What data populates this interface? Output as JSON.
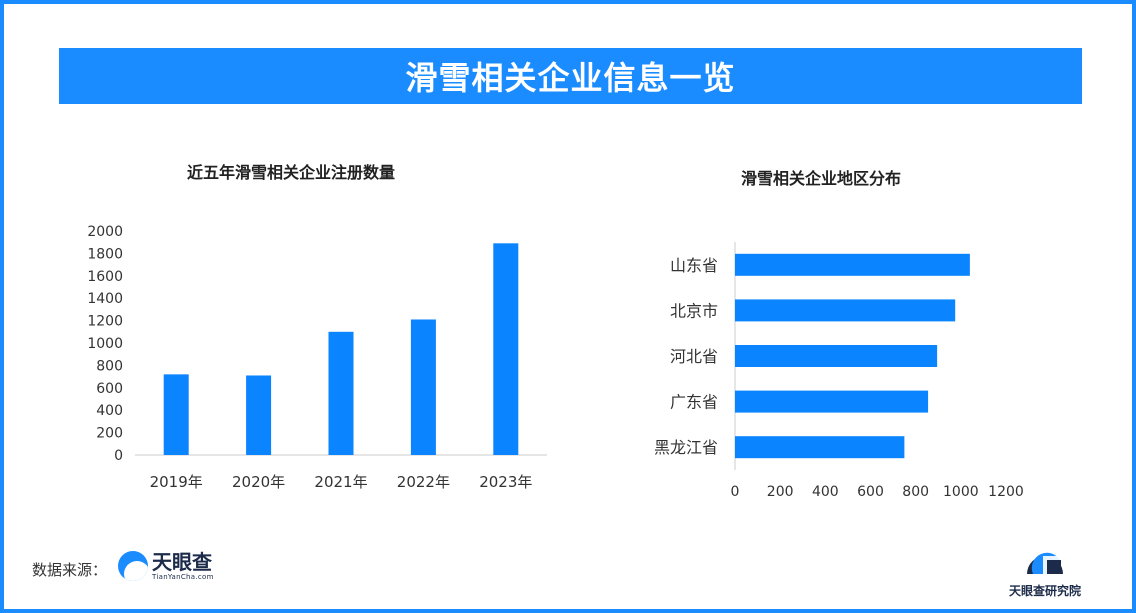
{
  "header": {
    "title": "滑雪相关企业信息一览"
  },
  "colors": {
    "accent": "#1a8cff",
    "bar": "#0a84ff",
    "axis": "#cccccc",
    "text": "#333333"
  },
  "chart_data": [
    {
      "type": "bar",
      "title": "近五年滑雪相关企业注册数量",
      "categories": [
        "2019年",
        "2020年",
        "2021年",
        "2022年",
        "2023年"
      ],
      "values": [
        720,
        710,
        1100,
        1210,
        1890
      ],
      "ylim": [
        0,
        2000
      ],
      "yticks": [
        0,
        200,
        400,
        600,
        800,
        1000,
        1200,
        1400,
        1600,
        1800,
        2000
      ],
      "grid": false
    },
    {
      "type": "bar",
      "orientation": "horizontal",
      "title": "滑雪相关企业地区分布",
      "categories": [
        "山东省",
        "北京市",
        "河北省",
        "广东省",
        "黑龙江省"
      ],
      "values": [
        1040,
        975,
        895,
        855,
        750
      ],
      "xlim": [
        0,
        1200
      ],
      "xticks": [
        0,
        200,
        400,
        600,
        800,
        1000,
        1200
      ],
      "grid": false
    }
  ],
  "footer": {
    "source_label": "数据来源：",
    "source_logo_name": "天眼查",
    "source_logo_sub": "TianYanCha.com",
    "institute": "天眼查研究院"
  }
}
